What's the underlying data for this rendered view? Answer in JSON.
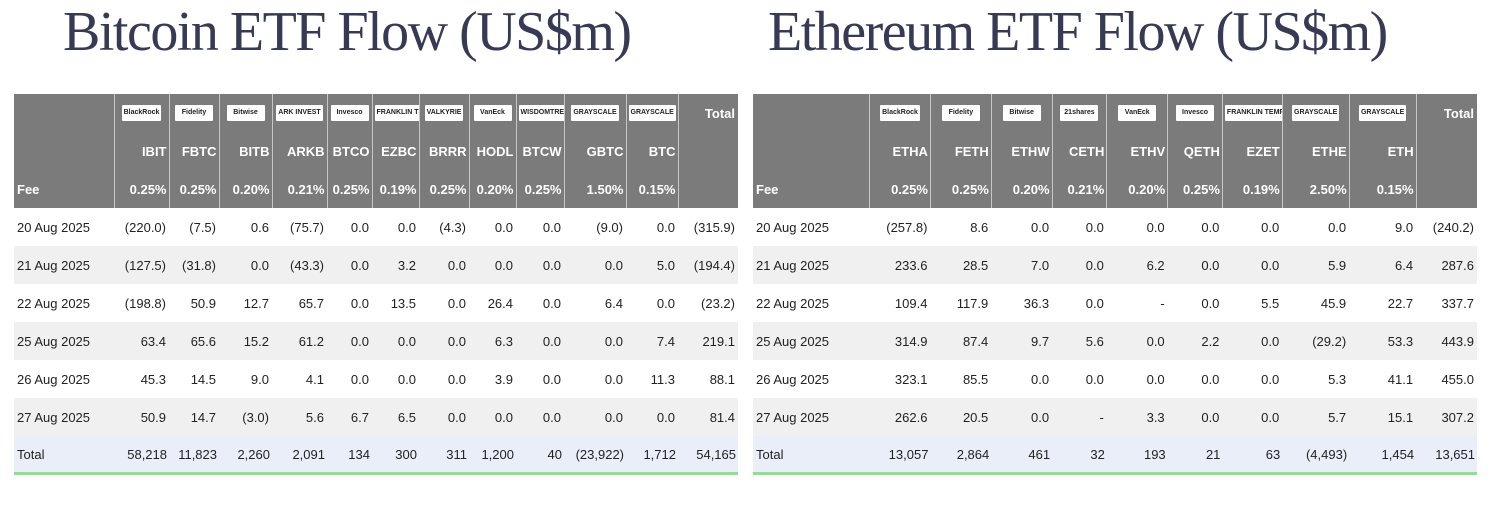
{
  "btc": {
    "title": "Bitcoin ETF Flow (US$m)",
    "logos": [
      "BlackRock",
      "Fidelity",
      "Bitwise",
      "ARK INVEST",
      "Invesco",
      "FRANKLIN TEMPLETON",
      "VALKYRIE",
      "VanEck",
      "WISDOMTREE",
      "GRAYSCALE",
      "GRAYSCALE"
    ],
    "total_header": "Total",
    "tickers": [
      "IBIT",
      "FBTC",
      "BITB",
      "ARKB",
      "BTCO",
      "EZBC",
      "BRRR",
      "HODL",
      "BTCW",
      "GBTC",
      "BTC"
    ],
    "fee_label": "Fee",
    "fees": [
      "0.25%",
      "0.25%",
      "0.20%",
      "0.21%",
      "0.25%",
      "0.19%",
      "0.25%",
      "0.20%",
      "0.25%",
      "1.50%",
      "0.15%"
    ],
    "rows": [
      {
        "date": "20 Aug 2025",
        "values": [
          "(220.0)",
          "(7.5)",
          "0.6",
          "(75.7)",
          "0.0",
          "0.0",
          "(4.3)",
          "0.0",
          "0.0",
          "(9.0)",
          "0.0",
          "(315.9)"
        ]
      },
      {
        "date": "21 Aug 2025",
        "values": [
          "(127.5)",
          "(31.8)",
          "0.0",
          "(43.3)",
          "0.0",
          "3.2",
          "0.0",
          "0.0",
          "0.0",
          "0.0",
          "5.0",
          "(194.4)"
        ]
      },
      {
        "date": "22 Aug 2025",
        "values": [
          "(198.8)",
          "50.9",
          "12.7",
          "65.7",
          "0.0",
          "13.5",
          "0.0",
          "26.4",
          "0.0",
          "6.4",
          "0.0",
          "(23.2)"
        ]
      },
      {
        "date": "25 Aug 2025",
        "values": [
          "63.4",
          "65.6",
          "15.2",
          "61.2",
          "0.0",
          "0.0",
          "0.0",
          "6.3",
          "0.0",
          "0.0",
          "7.4",
          "219.1"
        ]
      },
      {
        "date": "26 Aug 2025",
        "values": [
          "45.3",
          "14.5",
          "9.0",
          "4.1",
          "0.0",
          "0.0",
          "0.0",
          "3.9",
          "0.0",
          "0.0",
          "11.3",
          "88.1"
        ]
      },
      {
        "date": "27 Aug 2025",
        "values": [
          "50.9",
          "14.7",
          "(3.0)",
          "5.6",
          "6.7",
          "6.5",
          "0.0",
          "0.0",
          "0.0",
          "0.0",
          "0.0",
          "81.4"
        ]
      }
    ],
    "total_label": "Total",
    "totals": [
      "58,218",
      "11,823",
      "2,260",
      "2,091",
      "134",
      "300",
      "311",
      "1,200",
      "40",
      "(23,922)",
      "1,712",
      "54,165"
    ]
  },
  "eth": {
    "title": "Ethereum ETF Flow (US$m)",
    "logos": [
      "BlackRock",
      "Fidelity",
      "Bitwise",
      "21shares",
      "VanEck",
      "Invesco",
      "FRANKLIN TEMPLETON",
      "GRAYSCALE",
      "GRAYSCALE"
    ],
    "total_header": "Total",
    "tickers": [
      "ETHA",
      "FETH",
      "ETHW",
      "CETH",
      "ETHV",
      "QETH",
      "EZET",
      "ETHE",
      "ETH"
    ],
    "fee_label": "Fee",
    "fees": [
      "0.25%",
      "0.25%",
      "0.20%",
      "0.21%",
      "0.20%",
      "0.25%",
      "0.19%",
      "2.50%",
      "0.15%"
    ],
    "rows": [
      {
        "date": "20 Aug 2025",
        "values": [
          "(257.8)",
          "8.6",
          "0.0",
          "0.0",
          "0.0",
          "0.0",
          "0.0",
          "0.0",
          "9.0",
          "(240.2)"
        ]
      },
      {
        "date": "21 Aug 2025",
        "values": [
          "233.6",
          "28.5",
          "7.0",
          "0.0",
          "6.2",
          "0.0",
          "0.0",
          "5.9",
          "6.4",
          "287.6"
        ]
      },
      {
        "date": "22 Aug 2025",
        "values": [
          "109.4",
          "117.9",
          "36.3",
          "0.0",
          "-",
          "0.0",
          "5.5",
          "45.9",
          "22.7",
          "337.7"
        ]
      },
      {
        "date": "25 Aug 2025",
        "values": [
          "314.9",
          "87.4",
          "9.7",
          "5.6",
          "0.0",
          "2.2",
          "0.0",
          "(29.2)",
          "53.3",
          "443.9"
        ]
      },
      {
        "date": "26 Aug 2025",
        "values": [
          "323.1",
          "85.5",
          "0.0",
          "0.0",
          "0.0",
          "0.0",
          "0.0",
          "5.3",
          "41.1",
          "455.0"
        ]
      },
      {
        "date": "27 Aug 2025",
        "values": [
          "262.6",
          "20.5",
          "0.0",
          "-",
          "3.3",
          "0.0",
          "0.0",
          "5.7",
          "15.1",
          "307.2"
        ]
      }
    ],
    "total_label": "Total",
    "totals": [
      "13,057",
      "2,864",
      "461",
      "32",
      "193",
      "21",
      "63",
      "(4,493)",
      "1,454",
      "13,651"
    ]
  }
}
